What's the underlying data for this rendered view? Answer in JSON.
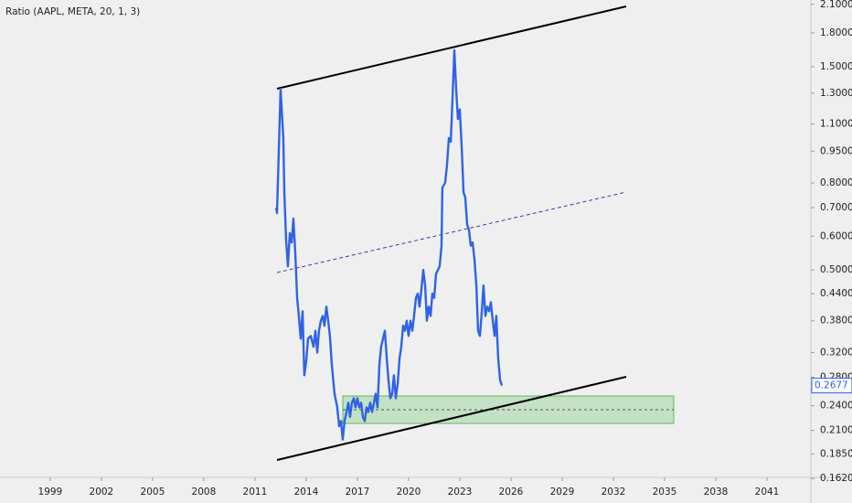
{
  "chart_data": {
    "type": "line",
    "title": "Ratio (AAPL, META, 20, 1, 3)",
    "y_scale": "log",
    "x": [
      2012.24,
      2012.29,
      2012.5,
      2012.66,
      2012.72,
      2012.82,
      2012.93,
      2013.04,
      2013.15,
      2013.25,
      2013.36,
      2013.47,
      2013.57,
      2013.68,
      2013.79,
      2013.89,
      2014.0,
      2014.11,
      2014.27,
      2014.43,
      2014.54,
      2014.65,
      2014.75,
      2014.86,
      2014.97,
      2015.07,
      2015.18,
      2015.29,
      2015.39,
      2015.5,
      2015.66,
      2015.82,
      2015.93,
      2016.04,
      2016.14,
      2016.25,
      2016.36,
      2016.47,
      2016.57,
      2016.68,
      2016.79,
      2016.89,
      2017.0,
      2017.11,
      2017.22,
      2017.32,
      2017.43,
      2017.54,
      2017.64,
      2017.75,
      2017.86,
      2017.97,
      2018.07,
      2018.18,
      2018.29,
      2018.39,
      2018.5,
      2018.61,
      2018.72,
      2018.82,
      2018.93,
      2019.04,
      2019.14,
      2019.25,
      2019.36,
      2019.47,
      2019.57,
      2019.68,
      2019.79,
      2019.89,
      2020.0,
      2020.11,
      2020.22,
      2020.32,
      2020.43,
      2020.54,
      2020.64,
      2020.75,
      2020.86,
      2020.97,
      2021.07,
      2021.18,
      2021.29,
      2021.39,
      2021.5,
      2021.61,
      2021.72,
      2021.82,
      2021.93,
      2021.98,
      2022.14,
      2022.25,
      2022.36,
      2022.47,
      2022.57,
      2022.68,
      2022.79,
      2022.89,
      2023.0,
      2023.11,
      2023.22,
      2023.32,
      2023.43,
      2023.54,
      2023.64,
      2023.75,
      2023.86,
      2023.97,
      2024.07,
      2024.18,
      2024.29,
      2024.39,
      2024.5,
      2024.61,
      2024.72,
      2024.82,
      2024.93,
      2025.04,
      2025.14,
      2025.25,
      2025.36,
      2025.47
    ],
    "series": [
      {
        "color": "#2f62e6",
        "values": [
          0.7,
          0.68,
          1.33,
          1.02,
          0.76,
          0.59,
          0.51,
          0.61,
          0.58,
          0.66,
          0.55,
          0.43,
          0.39,
          0.345,
          0.4,
          0.283,
          0.305,
          0.345,
          0.35,
          0.33,
          0.36,
          0.32,
          0.36,
          0.38,
          0.39,
          0.37,
          0.41,
          0.38,
          0.35,
          0.3,
          0.256,
          0.238,
          0.215,
          0.221,
          0.2,
          0.221,
          0.232,
          0.244,
          0.226,
          0.244,
          0.25,
          0.238,
          0.25,
          0.238,
          0.244,
          0.226,
          0.221,
          0.238,
          0.232,
          0.244,
          0.232,
          0.244,
          0.256,
          0.238,
          0.3,
          0.33,
          0.345,
          0.36,
          0.31,
          0.276,
          0.25,
          0.256,
          0.283,
          0.25,
          0.27,
          0.31,
          0.33,
          0.37,
          0.36,
          0.38,
          0.35,
          0.38,
          0.36,
          0.39,
          0.43,
          0.44,
          0.41,
          0.45,
          0.5,
          0.46,
          0.38,
          0.41,
          0.39,
          0.44,
          0.43,
          0.49,
          0.5,
          0.51,
          0.57,
          0.78,
          0.8,
          0.88,
          1.02,
          1.0,
          1.25,
          1.64,
          1.32,
          1.13,
          1.19,
          0.975,
          0.76,
          0.74,
          0.64,
          0.62,
          0.57,
          0.58,
          0.53,
          0.46,
          0.36,
          0.35,
          0.4,
          0.46,
          0.39,
          0.41,
          0.4,
          0.42,
          0.38,
          0.35,
          0.39,
          0.31,
          0.276,
          0.2677
        ]
      }
    ],
    "xlim": [
      1996.06,
      2043.57
    ],
    "ylim": [
      0.163,
      2.15
    ],
    "xticks": [
      1999,
      2002,
      2005,
      2008,
      2011,
      2014,
      2017,
      2020,
      2023,
      2026,
      2029,
      2032,
      2035,
      2038,
      2041
    ],
    "yticks": [
      {
        "value": 2.1,
        "label": "2.1000"
      },
      {
        "value": 1.8,
        "label": "1.8000"
      },
      {
        "value": 1.5,
        "label": "1.5000"
      },
      {
        "value": 1.3,
        "label": "1.3000"
      },
      {
        "value": 1.1,
        "label": "1.1000"
      },
      {
        "value": 0.95,
        "label": "0.9500"
      },
      {
        "value": 0.8,
        "label": "0.8000"
      },
      {
        "value": 0.7,
        "label": "0.7000"
      },
      {
        "value": 0.6,
        "label": "0.6000"
      },
      {
        "value": 0.5,
        "label": "0.5000"
      },
      {
        "value": 0.44,
        "label": "0.4400"
      },
      {
        "value": 0.38,
        "label": "0.3800"
      },
      {
        "value": 0.32,
        "label": "0.3200"
      },
      {
        "value": 0.28,
        "label": "0.2800"
      },
      {
        "value": 0.24,
        "label": "0.2400"
      },
      {
        "value": 0.21,
        "label": "0.2100"
      },
      {
        "value": 0.185,
        "label": "0.1850"
      },
      {
        "value": 0.162,
        "label": "0.1620"
      }
    ]
  }
}
